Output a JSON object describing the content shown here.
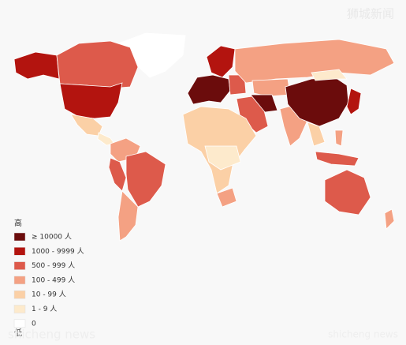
{
  "watermark": "狮城新闻",
  "legend": {
    "title": "高",
    "bottom": "低",
    "items": [
      {
        "label": "≥ 10000 人",
        "color": "#6b0c0c"
      },
      {
        "label": "1000 - 9999 人",
        "color": "#b3140f"
      },
      {
        "label": "500 - 999 人",
        "color": "#dd5a4b"
      },
      {
        "label": "100 - 499 人",
        "color": "#f4a183"
      },
      {
        "label": "10 - 99 人",
        "color": "#fbd0a6"
      },
      {
        "label": "1 - 9 人",
        "color": "#fdeacc"
      },
      {
        "label": "0",
        "color": "#ffffff"
      }
    ]
  },
  "footer": {
    "left": "shicheng news",
    "right": "shicheng news"
  }
}
